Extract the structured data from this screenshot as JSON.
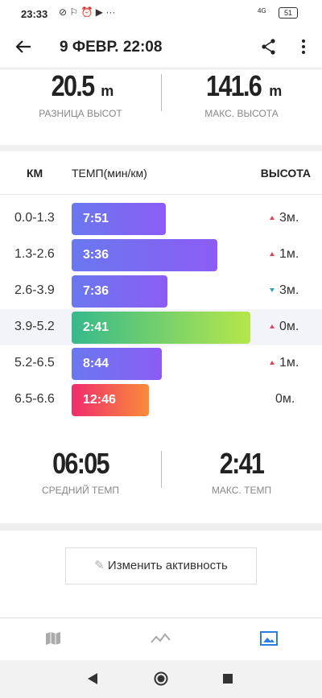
{
  "status_bar": {
    "time": "23:33",
    "network": "4G",
    "battery": "51"
  },
  "header": {
    "title": "9 ФЕВР. 22:08"
  },
  "elevation": {
    "gain": {
      "value": "20.5",
      "unit": "m",
      "label": "РАЗНИЦА ВЫСОТ"
    },
    "max": {
      "value": "141.6",
      "unit": "m",
      "label": "МАКС. ВЫСОТА"
    }
  },
  "splits": {
    "columns": [
      "КМ",
      "ТЕМП(мин/км)",
      "ВЫСОТА"
    ],
    "rows": [
      {
        "km": "0.0-1.3",
        "pace": "7:51",
        "altitude": "3м."
      },
      {
        "km": "1.3-2.6",
        "pace": "3:36",
        "altitude": "1м."
      },
      {
        "km": "2.6-3.9",
        "pace": "7:36",
        "altitude": "3м."
      },
      {
        "km": "3.9-5.2",
        "pace": "2:41",
        "altitude": "0м."
      },
      {
        "km": "5.2-6.5",
        "pace": "8:44",
        "altitude": "1м."
      },
      {
        "km": "6.5-6.6",
        "pace": "12:46",
        "altitude": "0м."
      }
    ]
  },
  "summary": {
    "avg": {
      "value": "06:05",
      "label": "СРЕДНИЙ ТЕМП"
    },
    "max": {
      "value": "2:41",
      "label": "МАКС. ТЕМП"
    }
  },
  "button": "Изменить активность"
}
